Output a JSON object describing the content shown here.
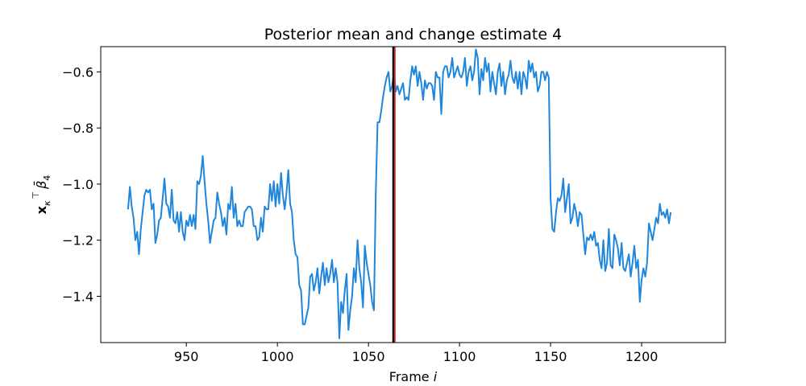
{
  "chart_data": {
    "type": "line",
    "title": "Posterior mean and change estimate 4",
    "xlabel": "Frame i",
    "xlabel_main": "Frame ",
    "xlabel_var": "i",
    "ylabel": "x_κ^⊤ β̄_4",
    "ylabel_parts": {
      "x": "x",
      "sub_kappa": "κ",
      "sup_T": "⊤",
      "beta": "β̄",
      "sub_4": "4"
    },
    "xlim": [
      903,
      1246
    ],
    "ylim": [
      -1.565,
      -0.51
    ],
    "xticks": [
      950,
      1000,
      1050,
      1100,
      1150,
      1200
    ],
    "xtick_labels": [
      "950",
      "1000",
      "1050",
      "1100",
      "1150",
      "1200"
    ],
    "yticks": [
      -0.6,
      -0.8,
      -1.0,
      -1.2,
      -1.4
    ],
    "ytick_labels": [
      "−0.6",
      "−0.8",
      "−1.0",
      "−1.2",
      "−1.4"
    ],
    "grid": false,
    "series": [
      {
        "color": "#1f86dc",
        "points": [
          [
            918,
            -1.09
          ],
          [
            919,
            -1.01
          ],
          [
            920,
            -1.08
          ],
          [
            921,
            -1.12
          ],
          [
            922,
            -1.2
          ],
          [
            923,
            -1.17
          ],
          [
            924,
            -1.25
          ],
          [
            925,
            -1.16
          ],
          [
            926,
            -1.1
          ],
          [
            927,
            -1.04
          ],
          [
            928,
            -1.02
          ],
          [
            929,
            -1.03
          ],
          [
            930,
            -1.02
          ],
          [
            931,
            -1.09
          ],
          [
            932,
            -1.07
          ],
          [
            933,
            -1.21
          ],
          [
            934,
            -1.18
          ],
          [
            935,
            -1.13
          ],
          [
            936,
            -1.12
          ],
          [
            937,
            -1.05
          ],
          [
            938,
            -0.98
          ],
          [
            939,
            -1.07
          ],
          [
            940,
            -1.08
          ],
          [
            941,
            -1.12
          ],
          [
            942,
            -1.02
          ],
          [
            943,
            -1.13
          ],
          [
            944,
            -1.14
          ],
          [
            945,
            -1.1
          ],
          [
            946,
            -1.17
          ],
          [
            947,
            -1.1
          ],
          [
            948,
            -1.17
          ],
          [
            949,
            -1.2
          ],
          [
            950,
            -1.13
          ],
          [
            951,
            -1.15
          ],
          [
            952,
            -1.11
          ],
          [
            953,
            -1.15
          ],
          [
            954,
            -1.11
          ],
          [
            955,
            -1.16
          ],
          [
            956,
            -0.99
          ],
          [
            957,
            -1.0
          ],
          [
            958,
            -0.97
          ],
          [
            959,
            -0.9
          ],
          [
            960,
            -0.99
          ],
          [
            961,
            -1.07
          ],
          [
            962,
            -1.13
          ],
          [
            963,
            -1.21
          ],
          [
            964,
            -1.17
          ],
          [
            965,
            -1.13
          ],
          [
            966,
            -1.12
          ],
          [
            967,
            -1.03
          ],
          [
            968,
            -1.07
          ],
          [
            969,
            -1.1
          ],
          [
            970,
            -1.15
          ],
          [
            971,
            -1.12
          ],
          [
            972,
            -1.18
          ],
          [
            973,
            -1.07
          ],
          [
            974,
            -1.09
          ],
          [
            975,
            -1.01
          ],
          [
            976,
            -1.12
          ],
          [
            977,
            -1.07
          ],
          [
            978,
            -1.15
          ],
          [
            979,
            -1.13
          ],
          [
            980,
            -1.15
          ],
          [
            981,
            -1.15
          ],
          [
            982,
            -1.1
          ],
          [
            983,
            -1.09
          ],
          [
            984,
            -1.08
          ],
          [
            985,
            -1.08
          ],
          [
            986,
            -1.09
          ],
          [
            987,
            -1.15
          ],
          [
            988,
            -1.15
          ],
          [
            989,
            -1.2
          ],
          [
            990,
            -1.19
          ],
          [
            991,
            -1.12
          ],
          [
            992,
            -1.17
          ],
          [
            993,
            -1.08
          ],
          [
            994,
            -1.09
          ],
          [
            995,
            -1.09
          ],
          [
            996,
            -1.0
          ],
          [
            997,
            -1.06
          ],
          [
            998,
            -0.99
          ],
          [
            999,
            -1.08
          ],
          [
            1000,
            -1.0
          ],
          [
            1001,
            -1.07
          ],
          [
            1002,
            -0.96
          ],
          [
            1003,
            -1.04
          ],
          [
            1004,
            -1.09
          ],
          [
            1005,
            -1.03
          ],
          [
            1006,
            -0.95
          ],
          [
            1007,
            -1.07
          ],
          [
            1008,
            -1.1
          ],
          [
            1009,
            -1.2
          ],
          [
            1010,
            -1.25
          ],
          [
            1011,
            -1.26
          ],
          [
            1012,
            -1.36
          ],
          [
            1013,
            -1.38
          ],
          [
            1014,
            -1.5
          ],
          [
            1015,
            -1.5
          ],
          [
            1016,
            -1.47
          ],
          [
            1017,
            -1.44
          ],
          [
            1018,
            -1.33
          ],
          [
            1019,
            -1.32
          ],
          [
            1020,
            -1.38
          ],
          [
            1021,
            -1.35
          ],
          [
            1022,
            -1.3
          ],
          [
            1023,
            -1.39
          ],
          [
            1024,
            -1.33
          ],
          [
            1025,
            -1.28
          ],
          [
            1026,
            -1.36
          ],
          [
            1027,
            -1.3
          ],
          [
            1028,
            -1.35
          ],
          [
            1029,
            -1.32
          ],
          [
            1030,
            -1.27
          ],
          [
            1031,
            -1.35
          ],
          [
            1032,
            -1.3
          ],
          [
            1033,
            -1.35
          ],
          [
            1034,
            -1.55
          ],
          [
            1035,
            -1.42
          ],
          [
            1036,
            -1.46
          ],
          [
            1037,
            -1.38
          ],
          [
            1038,
            -1.32
          ],
          [
            1039,
            -1.52
          ],
          [
            1040,
            -1.45
          ],
          [
            1041,
            -1.4
          ],
          [
            1042,
            -1.3
          ],
          [
            1043,
            -1.35
          ],
          [
            1044,
            -1.2
          ],
          [
            1045,
            -1.3
          ],
          [
            1046,
            -1.35
          ],
          [
            1047,
            -1.44
          ],
          [
            1048,
            -1.22
          ],
          [
            1049,
            -1.28
          ],
          [
            1050,
            -1.32
          ],
          [
            1051,
            -1.36
          ],
          [
            1052,
            -1.42
          ],
          [
            1053,
            -1.45
          ],
          [
            1054,
            -1.04
          ],
          [
            1055,
            -0.78
          ],
          [
            1056,
            -0.78
          ],
          [
            1057,
            -0.74
          ],
          [
            1058,
            -0.69
          ],
          [
            1059,
            -0.65
          ],
          [
            1060,
            -0.62
          ],
          [
            1061,
            -0.6
          ],
          [
            1062,
            -0.67
          ],
          [
            1063,
            -0.65
          ],
          [
            1064,
            -0.6
          ],
          [
            1065,
            -0.67
          ],
          [
            1066,
            -0.65
          ],
          [
            1067,
            -0.68
          ],
          [
            1068,
            -0.66
          ],
          [
            1069,
            -0.64
          ],
          [
            1070,
            -0.7
          ],
          [
            1071,
            -0.69
          ],
          [
            1072,
            -0.7
          ],
          [
            1073,
            -0.63
          ],
          [
            1074,
            -0.58
          ],
          [
            1075,
            -0.61
          ],
          [
            1076,
            -0.58
          ],
          [
            1077,
            -0.65
          ],
          [
            1078,
            -0.6
          ],
          [
            1079,
            -0.64
          ],
          [
            1080,
            -0.7
          ],
          [
            1081,
            -0.63
          ],
          [
            1082,
            -0.66
          ],
          [
            1083,
            -0.64
          ],
          [
            1084,
            -0.64
          ],
          [
            1085,
            -0.65
          ],
          [
            1086,
            -0.7
          ],
          [
            1087,
            -0.6
          ],
          [
            1088,
            -0.62
          ],
          [
            1089,
            -0.62
          ],
          [
            1090,
            -0.75
          ],
          [
            1091,
            -0.6
          ],
          [
            1092,
            -0.58
          ],
          [
            1093,
            -0.58
          ],
          [
            1094,
            -0.62
          ],
          [
            1095,
            -0.6
          ],
          [
            1096,
            -0.55
          ],
          [
            1097,
            -0.62
          ],
          [
            1098,
            -0.6
          ],
          [
            1099,
            -0.58
          ],
          [
            1100,
            -0.61
          ],
          [
            1101,
            -0.62
          ],
          [
            1102,
            -0.6
          ],
          [
            1103,
            -0.55
          ],
          [
            1104,
            -0.65
          ],
          [
            1105,
            -0.6
          ],
          [
            1106,
            -0.58
          ],
          [
            1107,
            -0.63
          ],
          [
            1108,
            -0.6
          ],
          [
            1109,
            -0.52
          ],
          [
            1110,
            -0.55
          ],
          [
            1111,
            -0.68
          ],
          [
            1112,
            -0.59
          ],
          [
            1113,
            -0.63
          ],
          [
            1114,
            -0.55
          ],
          [
            1115,
            -0.6
          ],
          [
            1116,
            -0.57
          ],
          [
            1117,
            -0.67
          ],
          [
            1118,
            -0.6
          ],
          [
            1119,
            -0.64
          ],
          [
            1120,
            -0.68
          ],
          [
            1121,
            -0.6
          ],
          [
            1122,
            -0.57
          ],
          [
            1123,
            -0.65
          ],
          [
            1124,
            -0.6
          ],
          [
            1125,
            -0.68
          ],
          [
            1126,
            -0.63
          ],
          [
            1127,
            -0.61
          ],
          [
            1128,
            -0.56
          ],
          [
            1129,
            -0.62
          ],
          [
            1130,
            -0.64
          ],
          [
            1131,
            -0.6
          ],
          [
            1132,
            -0.66
          ],
          [
            1133,
            -0.6
          ],
          [
            1134,
            -0.68
          ],
          [
            1135,
            -0.6
          ],
          [
            1136,
            -0.62
          ],
          [
            1137,
            -0.66
          ],
          [
            1138,
            -0.56
          ],
          [
            1139,
            -0.6
          ],
          [
            1140,
            -0.57
          ],
          [
            1141,
            -0.62
          ],
          [
            1142,
            -0.6
          ],
          [
            1143,
            -0.67
          ],
          [
            1144,
            -0.65
          ],
          [
            1145,
            -0.6
          ],
          [
            1146,
            -0.6
          ],
          [
            1147,
            -0.63
          ],
          [
            1148,
            -0.6
          ],
          [
            1149,
            -0.62
          ],
          [
            1150,
            -1.05
          ],
          [
            1151,
            -1.16
          ],
          [
            1152,
            -1.17
          ],
          [
            1153,
            -1.1
          ],
          [
            1154,
            -1.05
          ],
          [
            1155,
            -1.06
          ],
          [
            1156,
            -1.04
          ],
          [
            1157,
            -0.98
          ],
          [
            1158,
            -1.1
          ],
          [
            1159,
            -1.05
          ],
          [
            1160,
            -1.0
          ],
          [
            1161,
            -1.14
          ],
          [
            1162,
            -1.12
          ],
          [
            1163,
            -1.07
          ],
          [
            1164,
            -1.1
          ],
          [
            1165,
            -1.15
          ],
          [
            1166,
            -1.1
          ],
          [
            1167,
            -1.11
          ],
          [
            1168,
            -1.18
          ],
          [
            1169,
            -1.25
          ],
          [
            1170,
            -1.19
          ],
          [
            1171,
            -1.2
          ],
          [
            1172,
            -1.18
          ],
          [
            1173,
            -1.2
          ],
          [
            1174,
            -1.17
          ],
          [
            1175,
            -1.22
          ],
          [
            1176,
            -1.21
          ],
          [
            1177,
            -1.27
          ],
          [
            1178,
            -1.3
          ],
          [
            1179,
            -1.2
          ],
          [
            1180,
            -1.31
          ],
          [
            1181,
            -1.28
          ],
          [
            1182,
            -1.16
          ],
          [
            1183,
            -1.29
          ],
          [
            1184,
            -1.3
          ],
          [
            1185,
            -1.18
          ],
          [
            1186,
            -1.2
          ],
          [
            1187,
            -1.23
          ],
          [
            1188,
            -1.29
          ],
          [
            1189,
            -1.21
          ],
          [
            1190,
            -1.3
          ],
          [
            1191,
            -1.31
          ],
          [
            1192,
            -1.28
          ],
          [
            1193,
            -1.25
          ],
          [
            1194,
            -1.33
          ],
          [
            1195,
            -1.28
          ],
          [
            1196,
            -1.22
          ],
          [
            1197,
            -1.3
          ],
          [
            1198,
            -1.27
          ],
          [
            1199,
            -1.42
          ],
          [
            1200,
            -1.34
          ],
          [
            1201,
            -1.3
          ],
          [
            1202,
            -1.33
          ],
          [
            1203,
            -1.28
          ],
          [
            1204,
            -1.14
          ],
          [
            1205,
            -1.17
          ],
          [
            1206,
            -1.2
          ],
          [
            1207,
            -1.16
          ],
          [
            1208,
            -1.12
          ],
          [
            1209,
            -1.14
          ],
          [
            1210,
            -1.07
          ],
          [
            1211,
            -1.11
          ],
          [
            1212,
            -1.1
          ],
          [
            1213,
            -1.12
          ],
          [
            1214,
            -1.09
          ],
          [
            1215,
            -1.14
          ],
          [
            1216,
            -1.1
          ]
        ]
      }
    ],
    "vlines": [
      {
        "x": 1064.4,
        "color": "#d62728"
      },
      {
        "x": 1063.6,
        "color": "#000000"
      }
    ]
  }
}
